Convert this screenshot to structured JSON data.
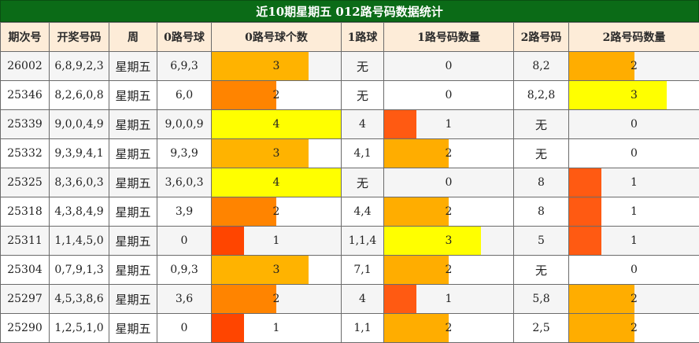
{
  "title": "近10期星期五 012路号码数据统计",
  "headers": [
    "期次号",
    "开奖号码",
    "周",
    "0路号球",
    "0路号球个数",
    "1路球",
    "1路号码数量",
    "2路号码",
    "2路号码数量"
  ],
  "count_scale_max": 4,
  "count_colors": {
    "0": "transparent",
    "1": "#ff4a00",
    "2": "#ff8a00",
    "3": "#ffb000",
    "4": "#ffff00"
  },
  "count_colors_alt": {
    "1": "#ff5a10",
    "2": "#ffaa00",
    "3": "#ffff00"
  },
  "rows": [
    {
      "issue": "26002",
      "numbers": "6,8,9,2,3",
      "week": "星期五",
      "r0": "6,9,3",
      "c0": 3,
      "r1": "无",
      "c1": 0,
      "r2": "8,2",
      "c2": 2
    },
    {
      "issue": "25346",
      "numbers": "8,2,6,0,8",
      "week": "星期五",
      "r0": "6,0",
      "c0": 2,
      "r1": "无",
      "c1": 0,
      "r2": "8,2,8",
      "c2": 3
    },
    {
      "issue": "25339",
      "numbers": "9,0,0,4,9",
      "week": "星期五",
      "r0": "9,0,0,9",
      "c0": 4,
      "r1": "4",
      "c1": 1,
      "r2": "无",
      "c2": 0
    },
    {
      "issue": "25332",
      "numbers": "9,3,9,4,1",
      "week": "星期五",
      "r0": "9,3,9",
      "c0": 3,
      "r1": "4,1",
      "c1": 2,
      "r2": "无",
      "c2": 0
    },
    {
      "issue": "25325",
      "numbers": "8,3,6,0,3",
      "week": "星期五",
      "r0": "3,6,0,3",
      "c0": 4,
      "r1": "无",
      "c1": 0,
      "r2": "8",
      "c2": 1
    },
    {
      "issue": "25318",
      "numbers": "4,3,8,4,9",
      "week": "星期五",
      "r0": "3,9",
      "c0": 2,
      "r1": "4,4",
      "c1": 2,
      "r2": "8",
      "c2": 1
    },
    {
      "issue": "25311",
      "numbers": "1,1,4,5,0",
      "week": "星期五",
      "r0": "0",
      "c0": 1,
      "r1": "1,1,4",
      "c1": 3,
      "r2": "5",
      "c2": 1
    },
    {
      "issue": "25304",
      "numbers": "0,7,9,1,3",
      "week": "星期五",
      "r0": "0,9,3",
      "c0": 3,
      "r1": "7,1",
      "c1": 2,
      "r2": "无",
      "c2": 0
    },
    {
      "issue": "25297",
      "numbers": "4,5,3,8,6",
      "week": "星期五",
      "r0": "3,6",
      "c0": 2,
      "r1": "4",
      "c1": 1,
      "r2": "5,8",
      "c2": 2
    },
    {
      "issue": "25290",
      "numbers": "1,2,5,1,0",
      "week": "星期五",
      "r0": "0",
      "c0": 1,
      "r1": "1,1",
      "c1": 2,
      "r2": "2,5",
      "c2": 2
    }
  ]
}
